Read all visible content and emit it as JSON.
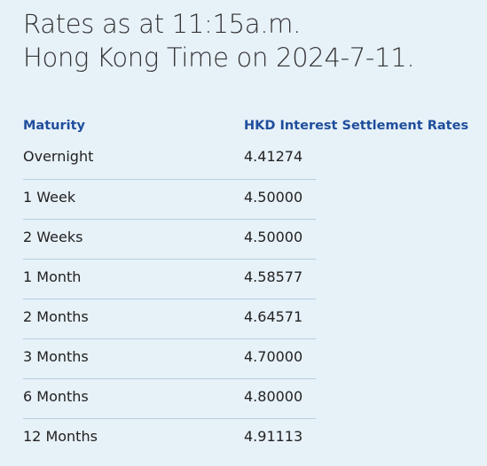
{
  "header": {
    "title": [
      "Rates as at 11:15a.m.",
      "Hong Kong Time on 2024-7-11."
    ]
  },
  "table": {
    "columns": [
      "Maturity",
      "HKD Interest Settlement Rates"
    ],
    "rows": [
      [
        "Overnight",
        "4.41274"
      ],
      [
        "1 Week",
        "4.50000"
      ],
      [
        "2 Weeks",
        "4.50000"
      ],
      [
        "1 Month",
        "4.58577"
      ],
      [
        "2 Months",
        "4.64571"
      ],
      [
        "3 Months",
        "4.70000"
      ],
      [
        "6 Months",
        "4.80000"
      ],
      [
        "12 Months",
        "4.91113"
      ]
    ]
  }
}
